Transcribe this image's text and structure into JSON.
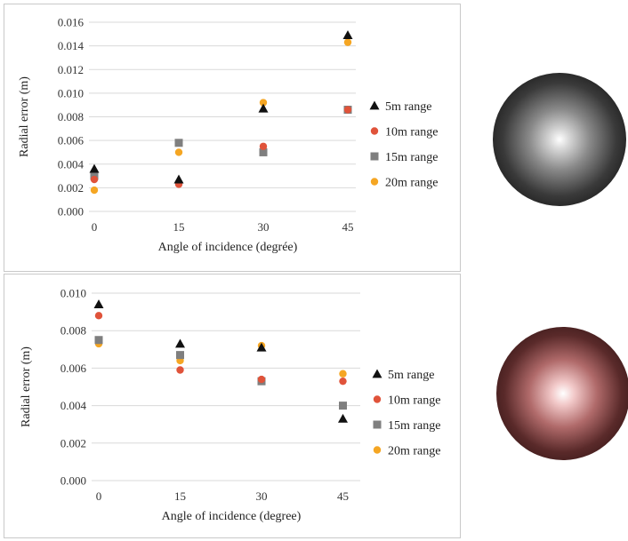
{
  "colors": {
    "5m": "#111111",
    "10m": "#e0533a",
    "15m": "#7f7f7f",
    "20m": "#f5a623",
    "gridline": "#d9d9d9",
    "sphere_top": "grayscale",
    "sphere_bottom": "dark-red"
  },
  "chart_data": [
    {
      "type": "scatter",
      "title": "",
      "xlabel": "Angle of incidence (degrée)",
      "ylabel": "Radial error (m)",
      "x": [
        0,
        15,
        30,
        45
      ],
      "x_ticks": [
        "0",
        "15",
        "30",
        "45"
      ],
      "ylim": [
        0,
        0.016
      ],
      "y_ticks": [
        "0.000",
        "0.002",
        "0.004",
        "0.006",
        "0.008",
        "0.010",
        "0.012",
        "0.014",
        "0.016"
      ],
      "grid": "horizontal",
      "legend_position": "right",
      "series": [
        {
          "name": "5m range",
          "marker": "triangle",
          "values": [
            0.0036,
            0.0027,
            0.0087,
            0.0149
          ]
        },
        {
          "name": "10m range",
          "marker": "circle",
          "values": [
            0.0027,
            0.0023,
            0.0055,
            0.0086
          ]
        },
        {
          "name": "15m range",
          "marker": "square",
          "values": [
            0.003,
            0.0058,
            0.005,
            0.0086
          ]
        },
        {
          "name": "20m range",
          "marker": "circle",
          "values": [
            0.0018,
            0.005,
            0.0092,
            0.0143
          ]
        }
      ]
    },
    {
      "type": "scatter",
      "title": "",
      "xlabel": "Angle of incidence (degree)",
      "ylabel": "Radial error (m)",
      "x": [
        0,
        15,
        30,
        45
      ],
      "x_ticks": [
        "0",
        "15",
        "30",
        "45"
      ],
      "ylim": [
        0,
        0.01
      ],
      "y_ticks": [
        "0.000",
        "0.002",
        "0.004",
        "0.006",
        "0.008",
        "0.010"
      ],
      "grid": "horizontal",
      "legend_position": "right",
      "series": [
        {
          "name": "5m range",
          "marker": "triangle",
          "values": [
            0.0094,
            0.0073,
            0.0071,
            0.0033
          ]
        },
        {
          "name": "10m range",
          "marker": "circle",
          "values": [
            0.0088,
            0.0059,
            0.0054,
            0.0053
          ]
        },
        {
          "name": "15m range",
          "marker": "square",
          "values": [
            0.0075,
            0.0067,
            0.0053,
            0.004
          ]
        },
        {
          "name": "20m range",
          "marker": "circle",
          "values": [
            0.0073,
            0.0064,
            0.0072,
            0.0057
          ]
        }
      ]
    }
  ]
}
